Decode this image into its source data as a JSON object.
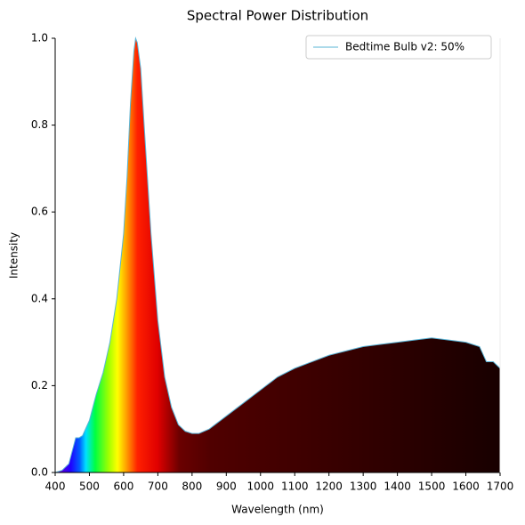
{
  "chart_data": {
    "type": "line",
    "title": "Spectral Power Distribution",
    "xlabel": "Wavelength (nm)",
    "ylabel": "Intensity",
    "x": [
      400,
      420,
      440,
      450,
      460,
      470,
      480,
      500,
      520,
      540,
      560,
      580,
      600,
      610,
      620,
      630,
      635,
      640,
      650,
      660,
      680,
      700,
      720,
      740,
      760,
      780,
      800,
      820,
      850,
      900,
      950,
      1000,
      1050,
      1100,
      1150,
      1200,
      1250,
      1300,
      1350,
      1400,
      1450,
      1500,
      1550,
      1600,
      1640,
      1660,
      1680,
      1700
    ],
    "series": [
      {
        "name": "Bedtime Bulb v2: 50%",
        "color": "#5ab4d6",
        "values": [
          0,
          0.005,
          0.02,
          0.05,
          0.08,
          0.08,
          0.085,
          0.12,
          0.18,
          0.23,
          0.3,
          0.4,
          0.55,
          0.68,
          0.85,
          0.97,
          1.0,
          0.99,
          0.93,
          0.8,
          0.55,
          0.35,
          0.22,
          0.15,
          0.11,
          0.095,
          0.09,
          0.09,
          0.1,
          0.13,
          0.16,
          0.19,
          0.22,
          0.24,
          0.255,
          0.27,
          0.28,
          0.29,
          0.295,
          0.3,
          0.305,
          0.31,
          0.305,
          0.3,
          0.29,
          0.255,
          0.255,
          0.24
        ]
      }
    ],
    "xlim": [
      400,
      1700
    ],
    "ylim": [
      0,
      1.0
    ],
    "xticks": [
      400,
      500,
      600,
      700,
      800,
      900,
      1000,
      1100,
      1200,
      1300,
      1400,
      1500,
      1600,
      1700
    ],
    "yticks": [
      {
        "value": 0,
        "label": "0.0"
      },
      {
        "value": 0.2,
        "label": "0.2"
      },
      {
        "value": 0.4,
        "label": "0.4"
      },
      {
        "value": 0.6,
        "label": "0.6"
      },
      {
        "value": 0.8,
        "label": "0.8"
      },
      {
        "value": 1.0,
        "label": "1.0"
      }
    ],
    "legend": "upper right"
  }
}
